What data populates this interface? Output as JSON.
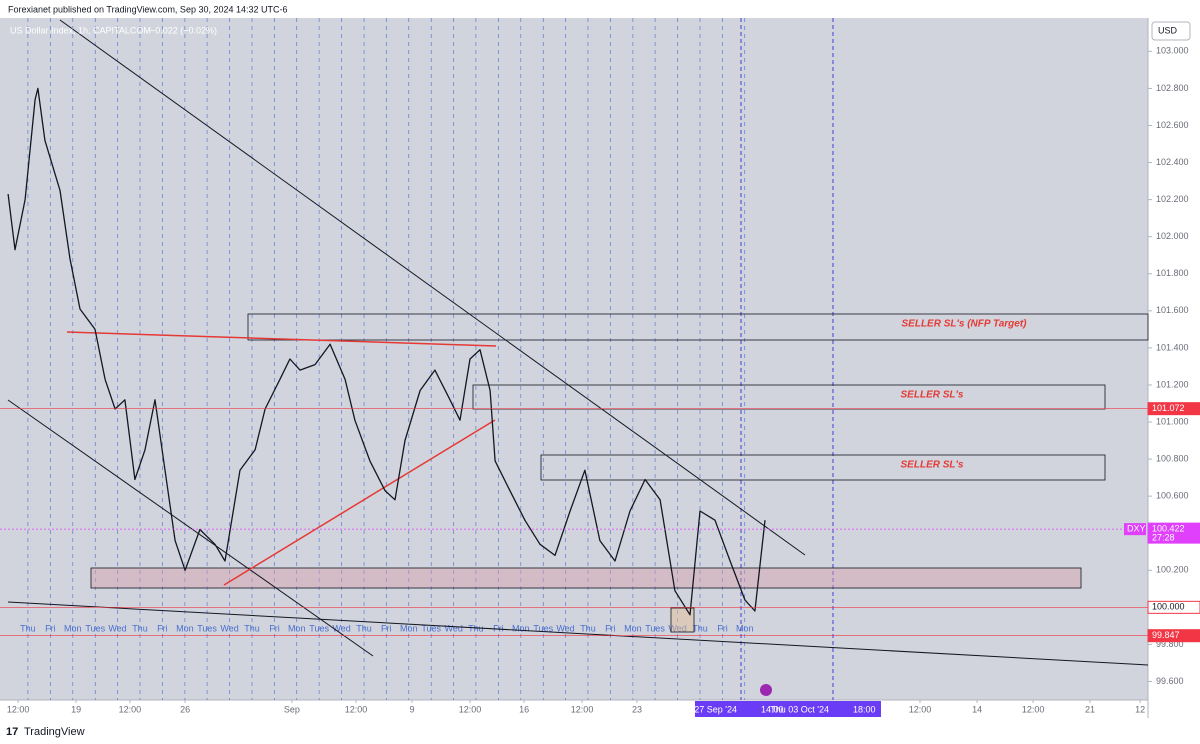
{
  "header": {
    "title": "Forexianet published on TradingView.com, Sep 30, 2024 14:32 UTC-6"
  },
  "footer": {
    "brand": "TradingView"
  },
  "chart_data": {
    "type": "line",
    "title": "US Dollar Index, 1h, CAPITALCOM",
    "subtitle": "−0.022 (−0.02%)",
    "currency": "USD",
    "color": "#131722",
    "xlim": [
      0,
      52.66
    ],
    "ylim": [
      99.5,
      103.18
    ],
    "yticks": [
      {
        "value": 99.6,
        "label": "99.600"
      },
      {
        "value": 99.8,
        "label": "99.800"
      },
      {
        "value": 100,
        "label": "100.000"
      },
      {
        "value": 100.2,
        "label": "100.200"
      },
      {
        "value": 100.4,
        "label": "100.400"
      },
      {
        "value": 100.6,
        "label": "100.600"
      },
      {
        "value": 100.8,
        "label": "100.800"
      },
      {
        "value": 101,
        "label": "101.000"
      },
      {
        "value": 101.2,
        "label": "101.200"
      },
      {
        "value": 101.4,
        "label": "101.400"
      },
      {
        "value": 101.6,
        "label": "101.600"
      },
      {
        "value": 101.8,
        "label": "101.800"
      },
      {
        "value": 102,
        "label": "102.000"
      },
      {
        "value": 102.2,
        "label": "102.200"
      },
      {
        "value": 102.4,
        "label": "102.400"
      },
      {
        "value": 102.6,
        "label": "102.600"
      },
      {
        "value": 102.8,
        "label": "102.800"
      },
      {
        "value": 103,
        "label": "103.000"
      }
    ],
    "xticks": [
      {
        "value": 0.83,
        "label": "12:00"
      },
      {
        "value": 3.49,
        "label": "19"
      },
      {
        "value": 5.96,
        "label": "12:00"
      },
      {
        "value": 8.49,
        "label": "26"
      },
      {
        "value": 13.39,
        "label": "Sep"
      },
      {
        "value": 16.33,
        "label": "12:00"
      },
      {
        "value": 18.9,
        "label": "9"
      },
      {
        "value": 21.56,
        "label": "12:00"
      },
      {
        "value": 24.04,
        "label": "16"
      },
      {
        "value": 26.7,
        "label": "12:00"
      },
      {
        "value": 29.22,
        "label": "23"
      },
      {
        "value": 42.2,
        "label": "12:00"
      },
      {
        "value": 44.82,
        "label": "14"
      },
      {
        "value": 47.39,
        "label": "12:00"
      },
      {
        "value": 50.0,
        "label": "21"
      },
      {
        "value": 52.3,
        "label": "12"
      }
    ],
    "x": [
      0.37,
      0.69,
      1.15,
      1.61,
      1.74,
      2.06,
      2.75,
      3.21,
      3.67,
      4.36,
      4.82,
      5.28,
      5.73,
      6.19,
      6.65,
      7.11,
      7.57,
      8.03,
      8.49,
      9.17,
      9.86,
      10.32,
      11.01,
      11.7,
      12.16,
      12.84,
      13.3,
      13.76,
      14.45,
      15.14,
      15.83,
      16.28,
      16.97,
      17.66,
      18.12,
      18.58,
      19.27,
      19.95,
      20.64,
      21.1,
      21.56,
      22.02,
      22.48,
      22.71,
      23.39,
      24.08,
      24.77,
      25.46,
      26.15,
      26.83,
      27.52,
      28.21,
      28.9,
      29.59,
      30.28,
      30.96,
      31.65,
      32.11,
      32.8,
      33.49,
      34.17,
      34.63,
      35.09
    ],
    "values": [
      102.23,
      101.93,
      102.2,
      102.74,
      102.8,
      102.52,
      102.25,
      101.88,
      101.61,
      101.5,
      101.23,
      101.07,
      101.12,
      100.69,
      100.85,
      101.12,
      100.74,
      100.36,
      100.2,
      100.42,
      100.34,
      100.25,
      100.74,
      100.85,
      101.07,
      101.23,
      101.34,
      101.28,
      101.31,
      101.42,
      101.23,
      101.01,
      100.79,
      100.63,
      100.58,
      100.9,
      101.17,
      101.28,
      101.12,
      101.01,
      101.34,
      101.39,
      101.17,
      100.79,
      100.63,
      100.47,
      100.34,
      100.28,
      100.52,
      100.74,
      100.36,
      100.25,
      100.52,
      100.69,
      100.58,
      100.09,
      99.96,
      100.52,
      100.47,
      100.25,
      100.04,
      99.98,
      100.47
    ],
    "day_lines": [
      1.28,
      2.31,
      3.34,
      4.37,
      5.39,
      6.42,
      7.45,
      8.48,
      9.5,
      10.53,
      11.56,
      12.59,
      13.61,
      14.64,
      15.67,
      16.7,
      17.72,
      18.75,
      19.78,
      20.81,
      21.83,
      22.86,
      23.89,
      24.92,
      25.94,
      26.97,
      28.0,
      29.03,
      30.05,
      31.08,
      32.11,
      33.14,
      34.16
    ],
    "day_labels": [
      "Thu",
      "Fri",
      "Mon",
      "Tues",
      "Wed",
      "Thu",
      "Fri",
      "Mon",
      "Tues",
      "Wed",
      "Thu",
      "Fri",
      "Mon",
      "Tues",
      "Wed",
      "Thu",
      "Fri",
      "Mon",
      "Tues",
      "Wed",
      "Thu",
      "Fri",
      "Mon",
      "Tues",
      "Wed",
      "Thu",
      "Fri",
      "Mon",
      "Tues",
      "Wed",
      "Thu",
      "Fri",
      "Mon"
    ],
    "x_markers": [
      {
        "value": 33.99,
        "label": "Fri 27 Sep '24",
        "time": "14:00"
      },
      {
        "value": 38.21,
        "label": "Thu 03 Oct '24",
        "time": "18:00"
      }
    ],
    "price_markers": [
      {
        "value": 101.072,
        "color": "#f23645",
        "filled": true
      },
      {
        "value": 100.422,
        "color": "#e040fb",
        "filled": true,
        "name": "DXY",
        "countdown": "27:28"
      },
      {
        "value": 100,
        "label": "100.000",
        "color": "#f23645",
        "filled": false
      },
      {
        "value": 99.847,
        "color": "#f23645",
        "filled": true
      }
    ],
    "annotations": [
      "SELLER SL's (NFP Target)",
      "SELLER SL's",
      "SELLER SL's"
    ]
  }
}
